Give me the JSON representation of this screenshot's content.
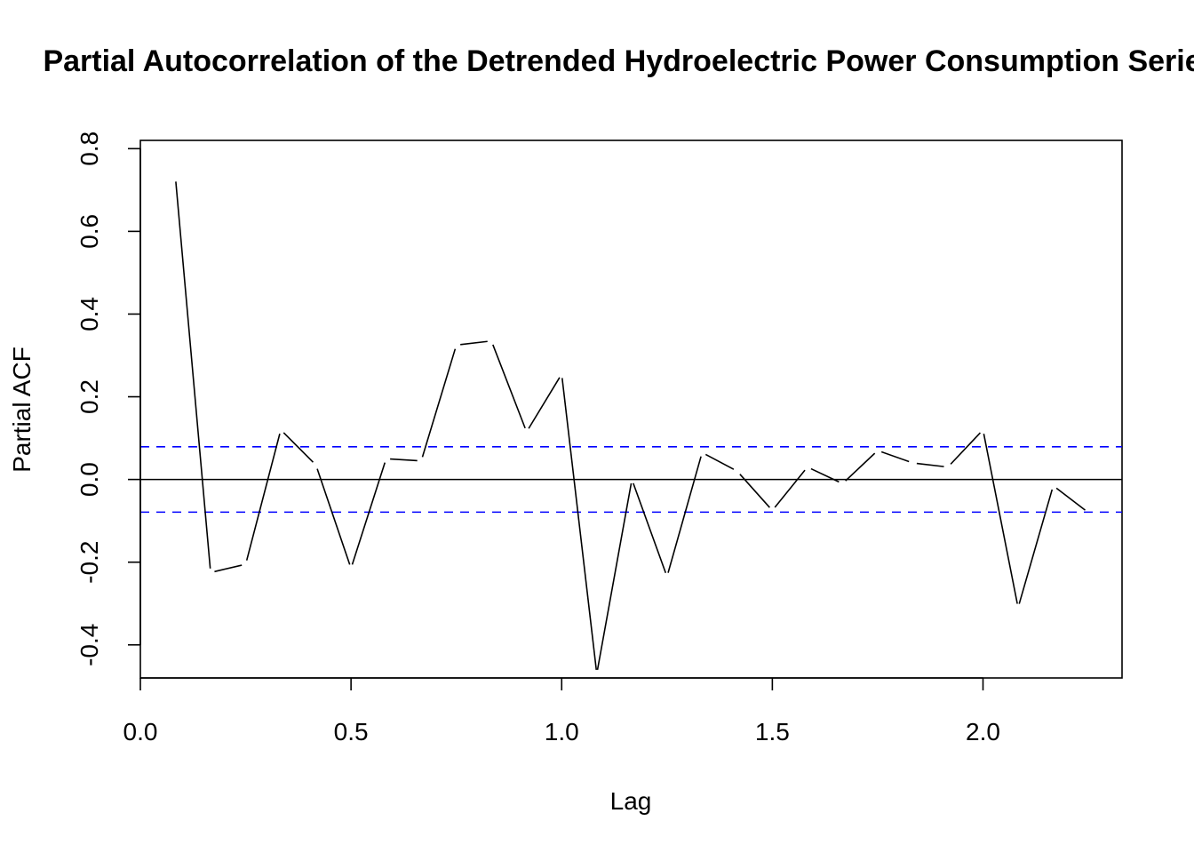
{
  "chart_data": {
    "type": "line",
    "title": "Partial Autocorrelation of the Detrended Hydroelectric Power Consumption Series",
    "xlabel": "Lag",
    "ylabel": "Partial ACF",
    "xlim": [
      0.0,
      2.33
    ],
    "ylim": [
      -0.48,
      0.82
    ],
    "xticks": [
      0.0,
      0.5,
      1.0,
      1.5,
      2.0
    ],
    "xtick_labels": [
      "0.0",
      "0.5",
      "1.0",
      "1.5",
      "2.0"
    ],
    "yticks": [
      -0.4,
      -0.2,
      0.0,
      0.2,
      0.4,
      0.6,
      0.8
    ],
    "ytick_labels": [
      "-0.4",
      "-0.2",
      "0.0",
      "0.2",
      "0.4",
      "0.6",
      "0.8"
    ],
    "grid": false,
    "zero_line": 0.0,
    "confidence_bounds": [
      0.079,
      -0.079
    ],
    "colors": {
      "series": "#000000",
      "bounds": "#0000ff",
      "frame": "#000000"
    },
    "series": [
      {
        "lag": [
          0.0833,
          0.1667,
          0.25,
          0.3333,
          0.4167,
          0.5,
          0.5833,
          0.6667,
          0.75,
          0.8333,
          0.9167,
          1.0,
          1.0833,
          1.1667,
          1.25,
          1.3333,
          1.4167,
          1.5,
          1.5833,
          1.6667,
          1.75,
          1.8333,
          1.9167,
          2.0,
          2.0833,
          2.1667,
          2.25
        ],
        "values": [
          0.73,
          -0.225,
          -0.205,
          0.12,
          0.035,
          -0.215,
          0.05,
          0.045,
          0.325,
          0.335,
          0.115,
          0.255,
          -0.47,
          0.0,
          -0.235,
          0.065,
          0.02,
          -0.075,
          0.03,
          -0.01,
          0.07,
          0.04,
          0.03,
          0.12,
          -0.31,
          -0.015,
          -0.08
        ]
      }
    ]
  }
}
